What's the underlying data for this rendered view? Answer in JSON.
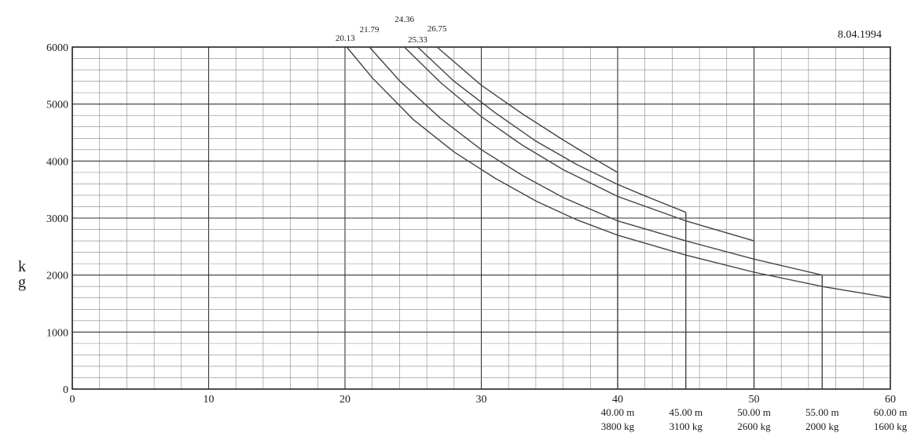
{
  "chart_data": {
    "type": "line",
    "date": "8.04.1994",
    "ylabel": "k\ng",
    "xlim": [
      0,
      60
    ],
    "ylim": [
      0,
      6000
    ],
    "x_major_ticks": [
      0,
      10,
      20,
      30,
      40,
      50,
      60
    ],
    "y_major_ticks": [
      0,
      1000,
      2000,
      3000,
      4000,
      5000,
      6000
    ],
    "grid": true,
    "series": [
      {
        "boom_length": "40.00 m",
        "end_load": "3800 kg",
        "start_label": "26.75",
        "points": [
          [
            26.75,
            6000
          ],
          [
            30,
            5330
          ],
          [
            33,
            4830
          ],
          [
            36,
            4370
          ],
          [
            38,
            4080
          ],
          [
            40,
            3800
          ]
        ]
      },
      {
        "boom_length": "45.00 m",
        "end_load": "3100 kg",
        "start_label": "25.33",
        "points": [
          [
            25.33,
            6000
          ],
          [
            28,
            5400
          ],
          [
            31,
            4850
          ],
          [
            34,
            4350
          ],
          [
            37,
            3940
          ],
          [
            40,
            3590
          ],
          [
            42,
            3390
          ],
          [
            45,
            3100
          ]
        ]
      },
      {
        "boom_length": "50.00 m",
        "end_load": "2600 kg",
        "start_label": "24.36",
        "points": [
          [
            24.36,
            6000
          ],
          [
            27,
            5380
          ],
          [
            30,
            4780
          ],
          [
            33,
            4280
          ],
          [
            36,
            3850
          ],
          [
            40,
            3380
          ],
          [
            45,
            2950
          ],
          [
            50,
            2600
          ]
        ]
      },
      {
        "boom_length": "55.00 m",
        "end_load": "2000 kg",
        "start_label": "21.79",
        "points": [
          [
            21.79,
            6000
          ],
          [
            24,
            5410
          ],
          [
            27,
            4750
          ],
          [
            30,
            4200
          ],
          [
            33,
            3750
          ],
          [
            36,
            3360
          ],
          [
            40,
            2950
          ],
          [
            45,
            2600
          ],
          [
            50,
            2280
          ],
          [
            55,
            2000
          ]
        ]
      },
      {
        "boom_length": "60.00 m",
        "end_load": "1600 kg",
        "start_label": "20.13",
        "points": [
          [
            20.13,
            6000
          ],
          [
            22,
            5460
          ],
          [
            25,
            4730
          ],
          [
            28,
            4160
          ],
          [
            31,
            3700
          ],
          [
            34,
            3300
          ],
          [
            37,
            2970
          ],
          [
            40,
            2700
          ],
          [
            45,
            2350
          ],
          [
            50,
            2050
          ],
          [
            55,
            1800
          ],
          [
            60,
            1600
          ]
        ]
      }
    ]
  }
}
